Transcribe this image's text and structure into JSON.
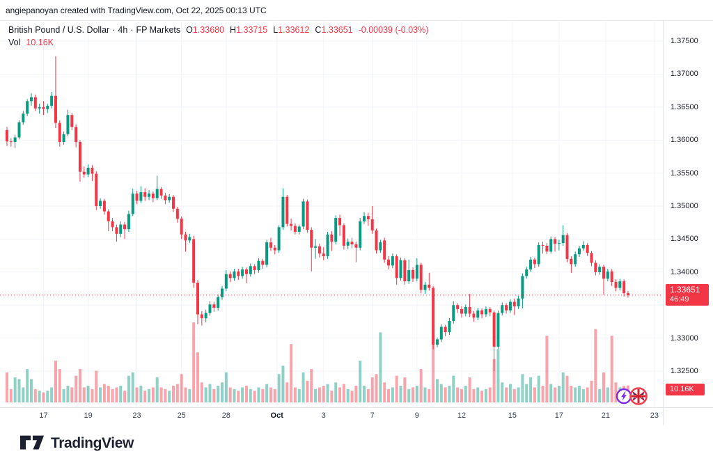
{
  "attribution": {
    "text": "angiepanoyan created with TradingView.com, Oct 22, 2025 00:13 UTC"
  },
  "legend": {
    "symbol_title": "British Pound / U.S. Dollar",
    "separator": "·",
    "interval": "4h",
    "exchange": "FP Markets",
    "o_label": "O",
    "o_value": "1.33680",
    "h_label": "H",
    "h_value": "1.33715",
    "l_label": "L",
    "l_value": "1.33612",
    "c_label": "C",
    "c_value": "1.33651",
    "change": "-0.00039 (-0.03%)",
    "vol_label": "Vol",
    "vol_value": "10.16K"
  },
  "price_scale": {
    "tick_labels": [
      "1.37500",
      "1.37000",
      "1.36500",
      "1.36000",
      "1.35500",
      "1.35000",
      "1.34500",
      "1.34000",
      "1.33500",
      "1.33000",
      "1.32500"
    ],
    "last_price_label": "1.33651",
    "countdown": "46:49",
    "volume_badge": "10.16K"
  },
  "time_scale": {
    "labels": [
      {
        "text": "17",
        "slot": 9
      },
      {
        "text": "19",
        "slot": 20
      },
      {
        "text": "23",
        "slot": 32
      },
      {
        "text": "25",
        "slot": 43
      },
      {
        "text": "28",
        "slot": 54
      },
      {
        "text": "Oct",
        "slot": 66.5,
        "emphasis": true
      },
      {
        "text": "3",
        "slot": 78
      },
      {
        "text": "7",
        "slot": 90
      },
      {
        "text": "9",
        "slot": 101
      },
      {
        "text": "12",
        "slot": 112
      },
      {
        "text": "15",
        "slot": 124.5
      },
      {
        "text": "17",
        "slot": 136
      },
      {
        "text": "21",
        "slot": 147.5
      },
      {
        "text": "23",
        "slot": 159.5
      }
    ]
  },
  "logo": {
    "text": "TradingView"
  },
  "event_markers": [
    {
      "name": "volatility-event-icon"
    },
    {
      "name": "uk-flag-event-icon"
    }
  ],
  "colors": {
    "up": "#089981",
    "down": "#f23645",
    "vol_up": "rgba(8,153,129,0.45)",
    "vol_down": "rgba(242,54,69,0.45)",
    "grid": "#f0f3fa",
    "axis_border": "#e0e3eb",
    "text": "#131722",
    "accent_red": "#f23645",
    "event_purple": "#7d2ae8",
    "flag_blue": "#1a2f7a",
    "flag_red": "#d3212c"
  },
  "chart_data": {
    "type": "candlestick+volume",
    "title": "British Pound / U.S. Dollar",
    "timeframe": "4h",
    "source": "FP Markets",
    "price_axis": {
      "min": 1.325,
      "max": 1.375,
      "tick_step": 0.005
    },
    "volume_axis_max_k": 48,
    "last_bar": {
      "open": 1.3368,
      "high": 1.33715,
      "low": 1.33612,
      "close": 1.33651,
      "volume_k": 10.16,
      "change": -0.00039,
      "change_pct": -0.03
    },
    "columns": [
      "open",
      "high",
      "low",
      "close",
      "volume_k"
    ],
    "candles": [
      [
        1.3615,
        1.362,
        1.3591,
        1.3598,
        18
      ],
      [
        1.3598,
        1.3603,
        1.359,
        1.3597,
        8
      ],
      [
        1.3597,
        1.3608,
        1.3588,
        1.3604,
        15
      ],
      [
        1.3604,
        1.363,
        1.3601,
        1.3627,
        14
      ],
      [
        1.3627,
        1.3644,
        1.3623,
        1.364,
        9
      ],
      [
        1.364,
        1.3662,
        1.3636,
        1.3659,
        20
      ],
      [
        1.3659,
        1.3671,
        1.3652,
        1.3665,
        14
      ],
      [
        1.3665,
        1.3669,
        1.3644,
        1.3648,
        8
      ],
      [
        1.3648,
        1.3655,
        1.364,
        1.365,
        7
      ],
      [
        1.365,
        1.3659,
        1.3638,
        1.3647,
        6
      ],
      [
        1.3647,
        1.3655,
        1.3641,
        1.3652,
        7
      ],
      [
        1.3652,
        1.3673,
        1.3648,
        1.3667,
        9
      ],
      [
        1.3667,
        1.3727,
        1.3618,
        1.3626,
        25
      ],
      [
        1.3626,
        1.363,
        1.359,
        1.3597,
        20
      ],
      [
        1.3597,
        1.3613,
        1.3593,
        1.3609,
        8
      ],
      [
        1.3609,
        1.3646,
        1.3606,
        1.3638,
        10
      ],
      [
        1.3638,
        1.3641,
        1.3615,
        1.362,
        9
      ],
      [
        1.362,
        1.3624,
        1.3589,
        1.3597,
        16
      ],
      [
        1.3597,
        1.36,
        1.3537,
        1.3552,
        20
      ],
      [
        1.3552,
        1.356,
        1.3543,
        1.3548,
        9
      ],
      [
        1.3548,
        1.3563,
        1.3544,
        1.3558,
        10
      ],
      [
        1.3558,
        1.3562,
        1.3538,
        1.3549,
        8
      ],
      [
        1.3549,
        1.3553,
        1.3494,
        1.35,
        19
      ],
      [
        1.35,
        1.3512,
        1.3496,
        1.3508,
        9
      ],
      [
        1.3508,
        1.3511,
        1.3487,
        1.3492,
        11
      ],
      [
        1.3492,
        1.3495,
        1.3462,
        1.3477,
        10
      ],
      [
        1.3477,
        1.3482,
        1.3462,
        1.3468,
        8
      ],
      [
        1.3468,
        1.3472,
        1.3446,
        1.3458,
        9
      ],
      [
        1.3458,
        1.3477,
        1.3453,
        1.3472,
        10
      ],
      [
        1.3472,
        1.3476,
        1.345,
        1.3465,
        7
      ],
      [
        1.3465,
        1.3493,
        1.3461,
        1.3488,
        16
      ],
      [
        1.3488,
        1.3526,
        1.3485,
        1.3519,
        18
      ],
      [
        1.3519,
        1.3523,
        1.3503,
        1.3508,
        9
      ],
      [
        1.3508,
        1.353,
        1.3505,
        1.3521,
        10
      ],
      [
        1.3521,
        1.3527,
        1.3508,
        1.3514,
        7
      ],
      [
        1.3514,
        1.3524,
        1.3509,
        1.3519,
        8
      ],
      [
        1.3519,
        1.3522,
        1.3506,
        1.3512,
        9
      ],
      [
        1.3512,
        1.3546,
        1.3509,
        1.3526,
        15
      ],
      [
        1.3526,
        1.3529,
        1.3511,
        1.3516,
        9
      ],
      [
        1.3516,
        1.352,
        1.3503,
        1.3509,
        8
      ],
      [
        1.3509,
        1.3518,
        1.3505,
        1.3514,
        7
      ],
      [
        1.3514,
        1.3517,
        1.3491,
        1.3496,
        10
      ],
      [
        1.3496,
        1.3499,
        1.3475,
        1.3481,
        11
      ],
      [
        1.3481,
        1.3484,
        1.345,
        1.3457,
        17
      ],
      [
        1.3457,
        1.3461,
        1.3431,
        1.3448,
        9
      ],
      [
        1.3448,
        1.3458,
        1.3444,
        1.3453,
        8
      ],
      [
        1.345,
        1.3455,
        1.3376,
        1.3384,
        48
      ],
      [
        1.3384,
        1.3388,
        1.3321,
        1.3336,
        30
      ],
      [
        1.3336,
        1.3341,
        1.3319,
        1.333,
        12
      ],
      [
        1.333,
        1.3343,
        1.3324,
        1.3338,
        9
      ],
      [
        1.3338,
        1.3356,
        1.3334,
        1.3351,
        11
      ],
      [
        1.3351,
        1.3355,
        1.334,
        1.3346,
        8
      ],
      [
        1.3346,
        1.3366,
        1.3342,
        1.3362,
        10
      ],
      [
        1.3362,
        1.3379,
        1.3358,
        1.3375,
        12
      ],
      [
        1.3375,
        1.3403,
        1.3371,
        1.3397,
        18
      ],
      [
        1.3397,
        1.3401,
        1.3385,
        1.3391,
        9
      ],
      [
        1.3391,
        1.3405,
        1.3387,
        1.3401,
        8
      ],
      [
        1.3401,
        1.3405,
        1.3388,
        1.3394,
        7
      ],
      [
        1.3394,
        1.3408,
        1.339,
        1.3404,
        9
      ],
      [
        1.3404,
        1.3407,
        1.3383,
        1.3397,
        10
      ],
      [
        1.3397,
        1.3413,
        1.3393,
        1.3409,
        8
      ],
      [
        1.3409,
        1.3412,
        1.3397,
        1.3403,
        7
      ],
      [
        1.3403,
        1.3421,
        1.3399,
        1.3417,
        9
      ],
      [
        1.3417,
        1.342,
        1.3405,
        1.3411,
        8
      ],
      [
        1.3411,
        1.3449,
        1.3407,
        1.3445,
        11
      ],
      [
        1.3445,
        1.3452,
        1.3432,
        1.3437,
        9
      ],
      [
        1.3437,
        1.3441,
        1.3427,
        1.3433,
        8
      ],
      [
        1.3433,
        1.3471,
        1.3429,
        1.3468,
        17
      ],
      [
        1.3468,
        1.3527,
        1.3464,
        1.3514,
        22
      ],
      [
        1.3514,
        1.3517,
        1.3469,
        1.3473,
        12
      ],
      [
        1.3473,
        1.3481,
        1.3463,
        1.347,
        35
      ],
      [
        1.347,
        1.3474,
        1.3457,
        1.3461,
        9
      ],
      [
        1.3461,
        1.3472,
        1.3457,
        1.3469,
        8
      ],
      [
        1.3469,
        1.3511,
        1.3465,
        1.3507,
        18
      ],
      [
        1.3507,
        1.351,
        1.346,
        1.3464,
        13
      ],
      [
        1.3464,
        1.3468,
        1.3401,
        1.3437,
        20
      ],
      [
        1.3437,
        1.345,
        1.342,
        1.3439,
        8
      ],
      [
        1.3439,
        1.3443,
        1.3422,
        1.3428,
        9
      ],
      [
        1.3428,
        1.3438,
        1.3418,
        1.3424,
        10
      ],
      [
        1.3424,
        1.3461,
        1.342,
        1.3457,
        11
      ],
      [
        1.3457,
        1.3462,
        1.3432,
        1.3446,
        7
      ],
      [
        1.3446,
        1.3486,
        1.3442,
        1.3482,
        12
      ],
      [
        1.3482,
        1.3487,
        1.3455,
        1.3471,
        9
      ],
      [
        1.3471,
        1.3474,
        1.3434,
        1.344,
        11
      ],
      [
        1.344,
        1.3451,
        1.3435,
        1.3446,
        8
      ],
      [
        1.3446,
        1.3452,
        1.3436,
        1.3442,
        7
      ],
      [
        1.3442,
        1.3446,
        1.3415,
        1.3437,
        10
      ],
      [
        1.3437,
        1.3482,
        1.3433,
        1.3477,
        25
      ],
      [
        1.3477,
        1.3491,
        1.3473,
        1.3485,
        10
      ],
      [
        1.3485,
        1.349,
        1.347,
        1.348,
        8
      ],
      [
        1.348,
        1.35,
        1.3458,
        1.3463,
        15
      ],
      [
        1.3463,
        1.3466,
        1.3428,
        1.3433,
        17
      ],
      [
        1.3433,
        1.3449,
        1.3429,
        1.3445,
        42
      ],
      [
        1.3448,
        1.3452,
        1.3414,
        1.3419,
        12
      ],
      [
        1.3419,
        1.3424,
        1.3404,
        1.341,
        8
      ],
      [
        1.341,
        1.3428,
        1.3406,
        1.3424,
        9
      ],
      [
        1.3424,
        1.3427,
        1.3381,
        1.3391,
        16
      ],
      [
        1.3391,
        1.3422,
        1.3387,
        1.3418,
        10
      ],
      [
        1.3418,
        1.3421,
        1.3381,
        1.3386,
        15
      ],
      [
        1.3386,
        1.3419,
        1.3382,
        1.3403,
        8
      ],
      [
        1.3403,
        1.3407,
        1.3385,
        1.339,
        9
      ],
      [
        1.339,
        1.3421,
        1.3386,
        1.3411,
        10
      ],
      [
        1.3411,
        1.3414,
        1.3368,
        1.3373,
        20
      ],
      [
        1.3373,
        1.3385,
        1.3367,
        1.3381,
        9
      ],
      [
        1.3381,
        1.3399,
        1.3372,
        1.3376,
        8
      ],
      [
        1.3376,
        1.3379,
        1.3283,
        1.329,
        40
      ],
      [
        1.329,
        1.3301,
        1.3286,
        1.3298,
        14
      ],
      [
        1.3298,
        1.3321,
        1.3294,
        1.3317,
        11
      ],
      [
        1.3317,
        1.332,
        1.3303,
        1.3309,
        9
      ],
      [
        1.3309,
        1.333,
        1.3305,
        1.3326,
        10
      ],
      [
        1.3326,
        1.3356,
        1.3322,
        1.335,
        16
      ],
      [
        1.335,
        1.3353,
        1.3338,
        1.3344,
        9
      ],
      [
        1.3344,
        1.3348,
        1.3331,
        1.3337,
        8
      ],
      [
        1.3337,
        1.3351,
        1.3333,
        1.3347,
        10
      ],
      [
        1.3347,
        1.3367,
        1.3332,
        1.3337,
        15
      ],
      [
        1.3337,
        1.3341,
        1.3325,
        1.3331,
        8
      ],
      [
        1.3331,
        1.3346,
        1.3327,
        1.3342,
        9
      ],
      [
        1.3342,
        1.3345,
        1.333,
        1.3336,
        7
      ],
      [
        1.3336,
        1.3348,
        1.3332,
        1.3344,
        8
      ],
      [
        1.3344,
        1.3347,
        1.3333,
        1.3339,
        9
      ],
      [
        1.3339,
        1.3342,
        1.325,
        1.3287,
        26
      ],
      [
        1.3287,
        1.3342,
        1.3284,
        1.3338,
        32
      ],
      [
        1.3338,
        1.3354,
        1.3334,
        1.335,
        12
      ],
      [
        1.335,
        1.3353,
        1.3337,
        1.3342,
        9
      ],
      [
        1.3342,
        1.3359,
        1.3338,
        1.3355,
        11
      ],
      [
        1.3355,
        1.336,
        1.3335,
        1.3348,
        8
      ],
      [
        1.3348,
        1.3364,
        1.3344,
        1.336,
        9
      ],
      [
        1.336,
        1.3398,
        1.3345,
        1.3394,
        17
      ],
      [
        1.3394,
        1.3408,
        1.339,
        1.3404,
        11
      ],
      [
        1.3404,
        1.3423,
        1.34,
        1.3419,
        15
      ],
      [
        1.3419,
        1.3422,
        1.3406,
        1.3412,
        9
      ],
      [
        1.3412,
        1.3445,
        1.3408,
        1.3441,
        16
      ],
      [
        1.3441,
        1.3446,
        1.3428,
        1.344,
        10
      ],
      [
        1.344,
        1.3444,
        1.3427,
        1.3431,
        40
      ],
      [
        1.3431,
        1.3454,
        1.3428,
        1.345,
        11
      ],
      [
        1.345,
        1.3453,
        1.3431,
        1.3443,
        9
      ],
      [
        1.3443,
        1.3449,
        1.3433,
        1.3444,
        10
      ],
      [
        1.3444,
        1.3471,
        1.344,
        1.3456,
        18
      ],
      [
        1.3456,
        1.3459,
        1.3415,
        1.342,
        16
      ],
      [
        1.342,
        1.3424,
        1.3399,
        1.3412,
        10
      ],
      [
        1.3412,
        1.3431,
        1.3408,
        1.3427,
        9
      ],
      [
        1.3427,
        1.344,
        1.3423,
        1.3436,
        10
      ],
      [
        1.3436,
        1.3447,
        1.3432,
        1.3441,
        8
      ],
      [
        1.3441,
        1.3444,
        1.3424,
        1.3429,
        9
      ],
      [
        1.3429,
        1.3432,
        1.3409,
        1.3414,
        13
      ],
      [
        1.3414,
        1.3418,
        1.3395,
        1.34,
        44
      ],
      [
        1.34,
        1.3412,
        1.3396,
        1.3408,
        8
      ],
      [
        1.3408,
        1.3411,
        1.3366,
        1.339,
        18
      ],
      [
        1.339,
        1.3405,
        1.3386,
        1.3401,
        9
      ],
      [
        1.3401,
        1.3404,
        1.3379,
        1.3385,
        40
      ],
      [
        1.3385,
        1.3389,
        1.3371,
        1.3376,
        12
      ],
      [
        1.3376,
        1.339,
        1.3372,
        1.3386,
        9
      ],
      [
        1.3386,
        1.3389,
        1.3363,
        1.3368,
        10
      ],
      [
        1.3368,
        1.33715,
        1.33612,
        1.33651,
        10.16
      ]
    ]
  }
}
